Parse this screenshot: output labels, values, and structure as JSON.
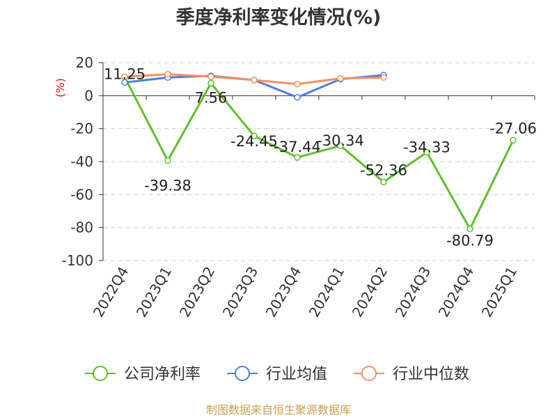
{
  "chart_data": {
    "type": "line",
    "title": "季度净利率变化情况(%)",
    "ylabel": "(%)",
    "ylim": [
      -100,
      20
    ],
    "yticks": [
      20,
      0,
      -20,
      -40,
      -60,
      -80,
      -100
    ],
    "grid": true,
    "legend_position": "bottom",
    "categories": [
      "2022Q4",
      "2023Q1",
      "2023Q2",
      "2023Q3",
      "2023Q4",
      "2024Q1",
      "2024Q2",
      "2024Q3",
      "2024Q4",
      "2025Q1"
    ],
    "series": [
      {
        "name": "公司净利率",
        "color": "#5bc12a",
        "values": [
          11.25,
          -39.38,
          7.56,
          -24.45,
          -37.44,
          -30.34,
          -52.36,
          -34.33,
          -80.79,
          -27.06
        ],
        "labels": [
          "11.25",
          "-39.38",
          "7.56",
          "-24.45",
          "-37.44",
          "-30.34",
          "-52.36",
          "-34.33",
          "-80.79",
          "-27.06"
        ]
      },
      {
        "name": "行业均值",
        "color": "#4f7fe0",
        "values": [
          8,
          11,
          12,
          9.5,
          -1,
          10,
          12.5,
          null,
          null,
          null
        ]
      },
      {
        "name": "行业中位数",
        "color": "#f59060",
        "values": [
          11.5,
          13,
          11.5,
          9.5,
          7,
          10.5,
          11,
          null,
          null,
          null
        ]
      }
    ]
  },
  "source_note": "制图数据来自恒生聚源数据库"
}
